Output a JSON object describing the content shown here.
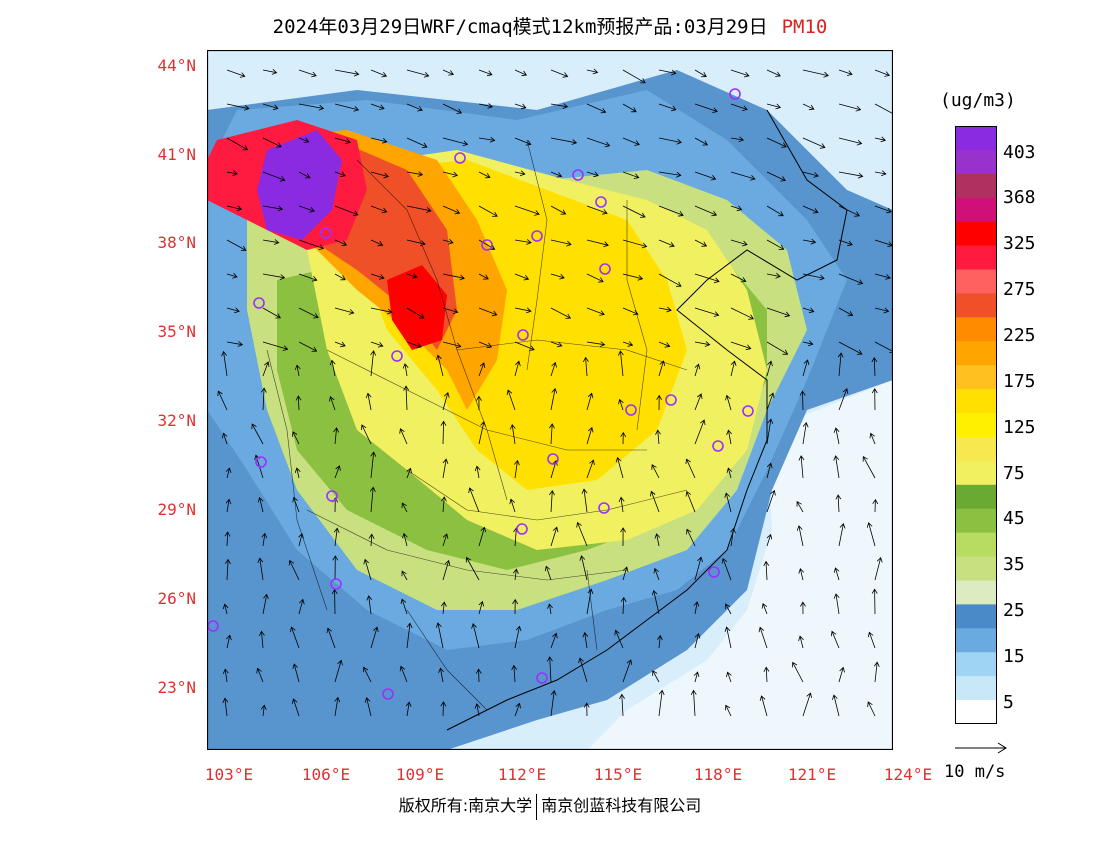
{
  "title": {
    "main": "2024年03月29日WRF/cmaq模式12km预报产品:03月29日",
    "product": "PM10"
  },
  "axes": {
    "lat_labels": [
      "44°N",
      "41°N",
      "38°N",
      "35°N",
      "32°N",
      "29°N",
      "26°N",
      "23°N"
    ],
    "lon_labels": [
      "103°E",
      "106°E",
      "109°E",
      "112°E",
      "115°E",
      "118°E",
      "121°E",
      "124°E"
    ],
    "lat_range": [
      21,
      44.5
    ],
    "lon_range": [
      102.7,
      124
    ]
  },
  "colorbar": {
    "unit": "(ug/m3)",
    "labels": [
      "403",
      "368",
      "325",
      "275",
      "225",
      "175",
      "125",
      "75",
      "45",
      "35",
      "25",
      "15",
      "5"
    ],
    "colors": [
      "#8a2be2",
      "#9932cc",
      "#b03060",
      "#d01078",
      "#ff0000",
      "#ff1a40",
      "#ff6060",
      "#f05028",
      "#ff8c00",
      "#ffa500",
      "#ffc020",
      "#ffe000",
      "#fff000",
      "#f8e850",
      "#f0f060",
      "#6aaa30",
      "#8cc040",
      "#b8dc60",
      "#c8e080",
      "#dcecc0",
      "#4a8ac8",
      "#6aaae0",
      "#a0d4f4",
      "#c8e8f8",
      "#ffffff"
    ]
  },
  "wind_reference": "10 m/s",
  "copyright": {
    "left": "版权所有:南京大学",
    "right": "南京创蓝科技有限公司"
  },
  "colors": {
    "label_red": "#e03030",
    "city_marker": "#9b30ff"
  }
}
